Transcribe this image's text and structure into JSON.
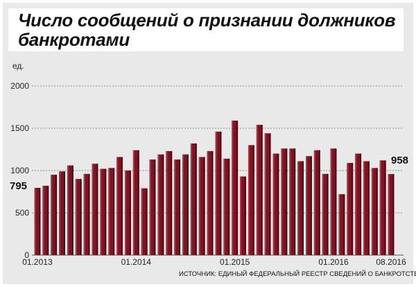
{
  "chart_data": {
    "type": "bar",
    "title_lines": [
      "Число сообщений о признании должников",
      "банкротами"
    ],
    "unit_label": "ед.",
    "ylim": [
      0,
      2000
    ],
    "yticks": [
      0,
      500,
      1000,
      1500,
      2000
    ],
    "grid": true,
    "x_tick_labels": [
      {
        "index": 0,
        "label": "01.2013"
      },
      {
        "index": 12,
        "label": "01.2014"
      },
      {
        "index": 24,
        "label": "01.2015"
      },
      {
        "index": 36,
        "label": "01.2016"
      },
      {
        "index": 43,
        "label": "08.2016"
      }
    ],
    "first_value_label": "795",
    "last_value_label": "958",
    "values": [
      795,
      820,
      950,
      990,
      1060,
      900,
      960,
      1080,
      1020,
      1030,
      1160,
      1000,
      1240,
      790,
      1130,
      1190,
      1230,
      1130,
      1190,
      1320,
      1160,
      1230,
      1460,
      1140,
      1590,
      930,
      1300,
      1540,
      1440,
      1200,
      1260,
      1260,
      1110,
      1170,
      1240,
      960,
      1260,
      720,
      1090,
      1200,
      1110,
      1030,
      1120,
      958
    ],
    "bar_color": "#7a1523",
    "bar_highlight": "#a8394a",
    "bar_shadow": "#4a0a14",
    "source": "ИСТОЧНИК: ЕДИНЫЙ ФЕДЕРАЛЬНЫЙ РЕЕСТР СВЕДЕНИЙ О БАНКРОТСТВЕ"
  }
}
